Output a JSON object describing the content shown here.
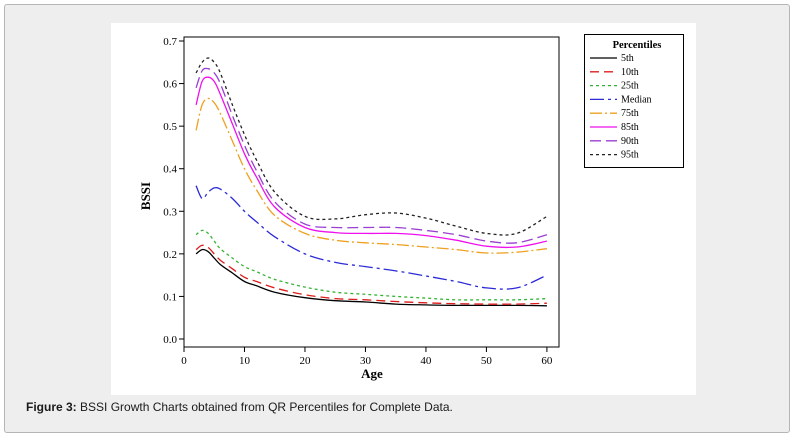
{
  "caption": {
    "label": "Figure 3:",
    "text": "BSSI Growth Charts obtained from QR Percentiles for Complete Data."
  },
  "colors": {
    "frame_bg": "#eeeeee",
    "axis": "#000000"
  },
  "chart_data": {
    "type": "line",
    "xlabel": "Age",
    "ylabel": "BSSI",
    "xlim": [
      0,
      62
    ],
    "ylim": [
      0.0,
      0.7
    ],
    "xticks": [
      0,
      10,
      20,
      30,
      40,
      50,
      60
    ],
    "yticks": [
      0.0,
      0.1,
      0.2,
      0.3,
      0.4,
      0.5,
      0.6,
      0.7
    ],
    "ytick_labels": [
      "0.0",
      "0.1",
      "0.2",
      "0.3",
      "0.4",
      "0.5",
      "0.6",
      "0.7"
    ],
    "grid": false,
    "legend_title": "Percentiles",
    "legend_position": "outside-right",
    "x": [
      2,
      3,
      4,
      5,
      6,
      8,
      10,
      12,
      15,
      20,
      25,
      30,
      35,
      40,
      45,
      50,
      55,
      60
    ],
    "series": [
      {
        "name": "5th",
        "color": "#000000",
        "dash": "",
        "values": [
          0.2,
          0.21,
          0.205,
          0.19,
          0.175,
          0.155,
          0.135,
          0.125,
          0.11,
          0.097,
          0.09,
          0.087,
          0.082,
          0.08,
          0.079,
          0.079,
          0.079,
          0.078
        ]
      },
      {
        "name": "10th",
        "color": "#dd1c1c",
        "dash": "9 5",
        "values": [
          0.21,
          0.22,
          0.215,
          0.2,
          0.185,
          0.165,
          0.145,
          0.135,
          0.12,
          0.104,
          0.095,
          0.092,
          0.088,
          0.085,
          0.083,
          0.082,
          0.082,
          0.084
        ]
      },
      {
        "name": "25th",
        "color": "#36b336",
        "dash": "3 3",
        "values": [
          0.245,
          0.255,
          0.248,
          0.23,
          0.212,
          0.19,
          0.17,
          0.158,
          0.14,
          0.122,
          0.11,
          0.105,
          0.1,
          0.096,
          0.092,
          0.092,
          0.092,
          0.095
        ]
      },
      {
        "name": "Median",
        "color": "#2b2bd6",
        "dash": "14 4 3 4",
        "values": [
          0.36,
          0.33,
          0.345,
          0.355,
          0.352,
          0.33,
          0.3,
          0.275,
          0.24,
          0.2,
          0.18,
          0.17,
          0.16,
          0.148,
          0.135,
          0.12,
          0.12,
          0.15
        ]
      },
      {
        "name": "75th",
        "color": "#f0a020",
        "dash": "12 3 2 3",
        "values": [
          0.49,
          0.55,
          0.565,
          0.555,
          0.53,
          0.465,
          0.4,
          0.35,
          0.29,
          0.248,
          0.232,
          0.226,
          0.222,
          0.216,
          0.21,
          0.202,
          0.204,
          0.212
        ]
      },
      {
        "name": "85th",
        "color": "#ee11ee",
        "dash": "",
        "values": [
          0.55,
          0.605,
          0.615,
          0.605,
          0.575,
          0.505,
          0.435,
          0.38,
          0.31,
          0.262,
          0.25,
          0.248,
          0.248,
          0.243,
          0.232,
          0.218,
          0.216,
          0.23
        ]
      },
      {
        "name": "90th",
        "color": "#9a3fd1",
        "dash": "11 5",
        "values": [
          0.59,
          0.63,
          0.635,
          0.625,
          0.6,
          0.525,
          0.455,
          0.395,
          0.322,
          0.27,
          0.262,
          0.262,
          0.262,
          0.255,
          0.245,
          0.23,
          0.226,
          0.245
        ]
      },
      {
        "name": "95th",
        "color": "#222222",
        "dash": "3 3",
        "values": [
          0.625,
          0.65,
          0.66,
          0.65,
          0.625,
          0.55,
          0.48,
          0.42,
          0.345,
          0.288,
          0.282,
          0.292,
          0.296,
          0.284,
          0.265,
          0.248,
          0.248,
          0.288
        ]
      }
    ]
  }
}
